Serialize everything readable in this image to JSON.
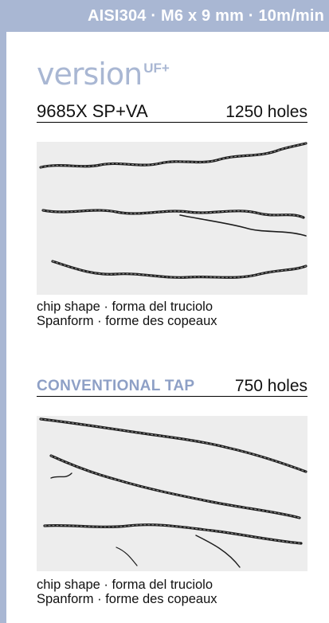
{
  "header": {
    "text": "AISI304 · M6 x 9 mm · 10m/min"
  },
  "logo": {
    "word": "version",
    "sup": "UF+"
  },
  "product": {
    "name": "9685X SP+VA",
    "holes": "1250 holes"
  },
  "conventional": {
    "name": "CONVENTIONAL TAP",
    "holes": "750 holes"
  },
  "caption": {
    "line1": "chip shape · forma del truciolo",
    "line2": "Spanform · forme des copeaux"
  },
  "colors": {
    "accent": "#a9b7d3",
    "conventional_title": "#8ea0c6"
  }
}
